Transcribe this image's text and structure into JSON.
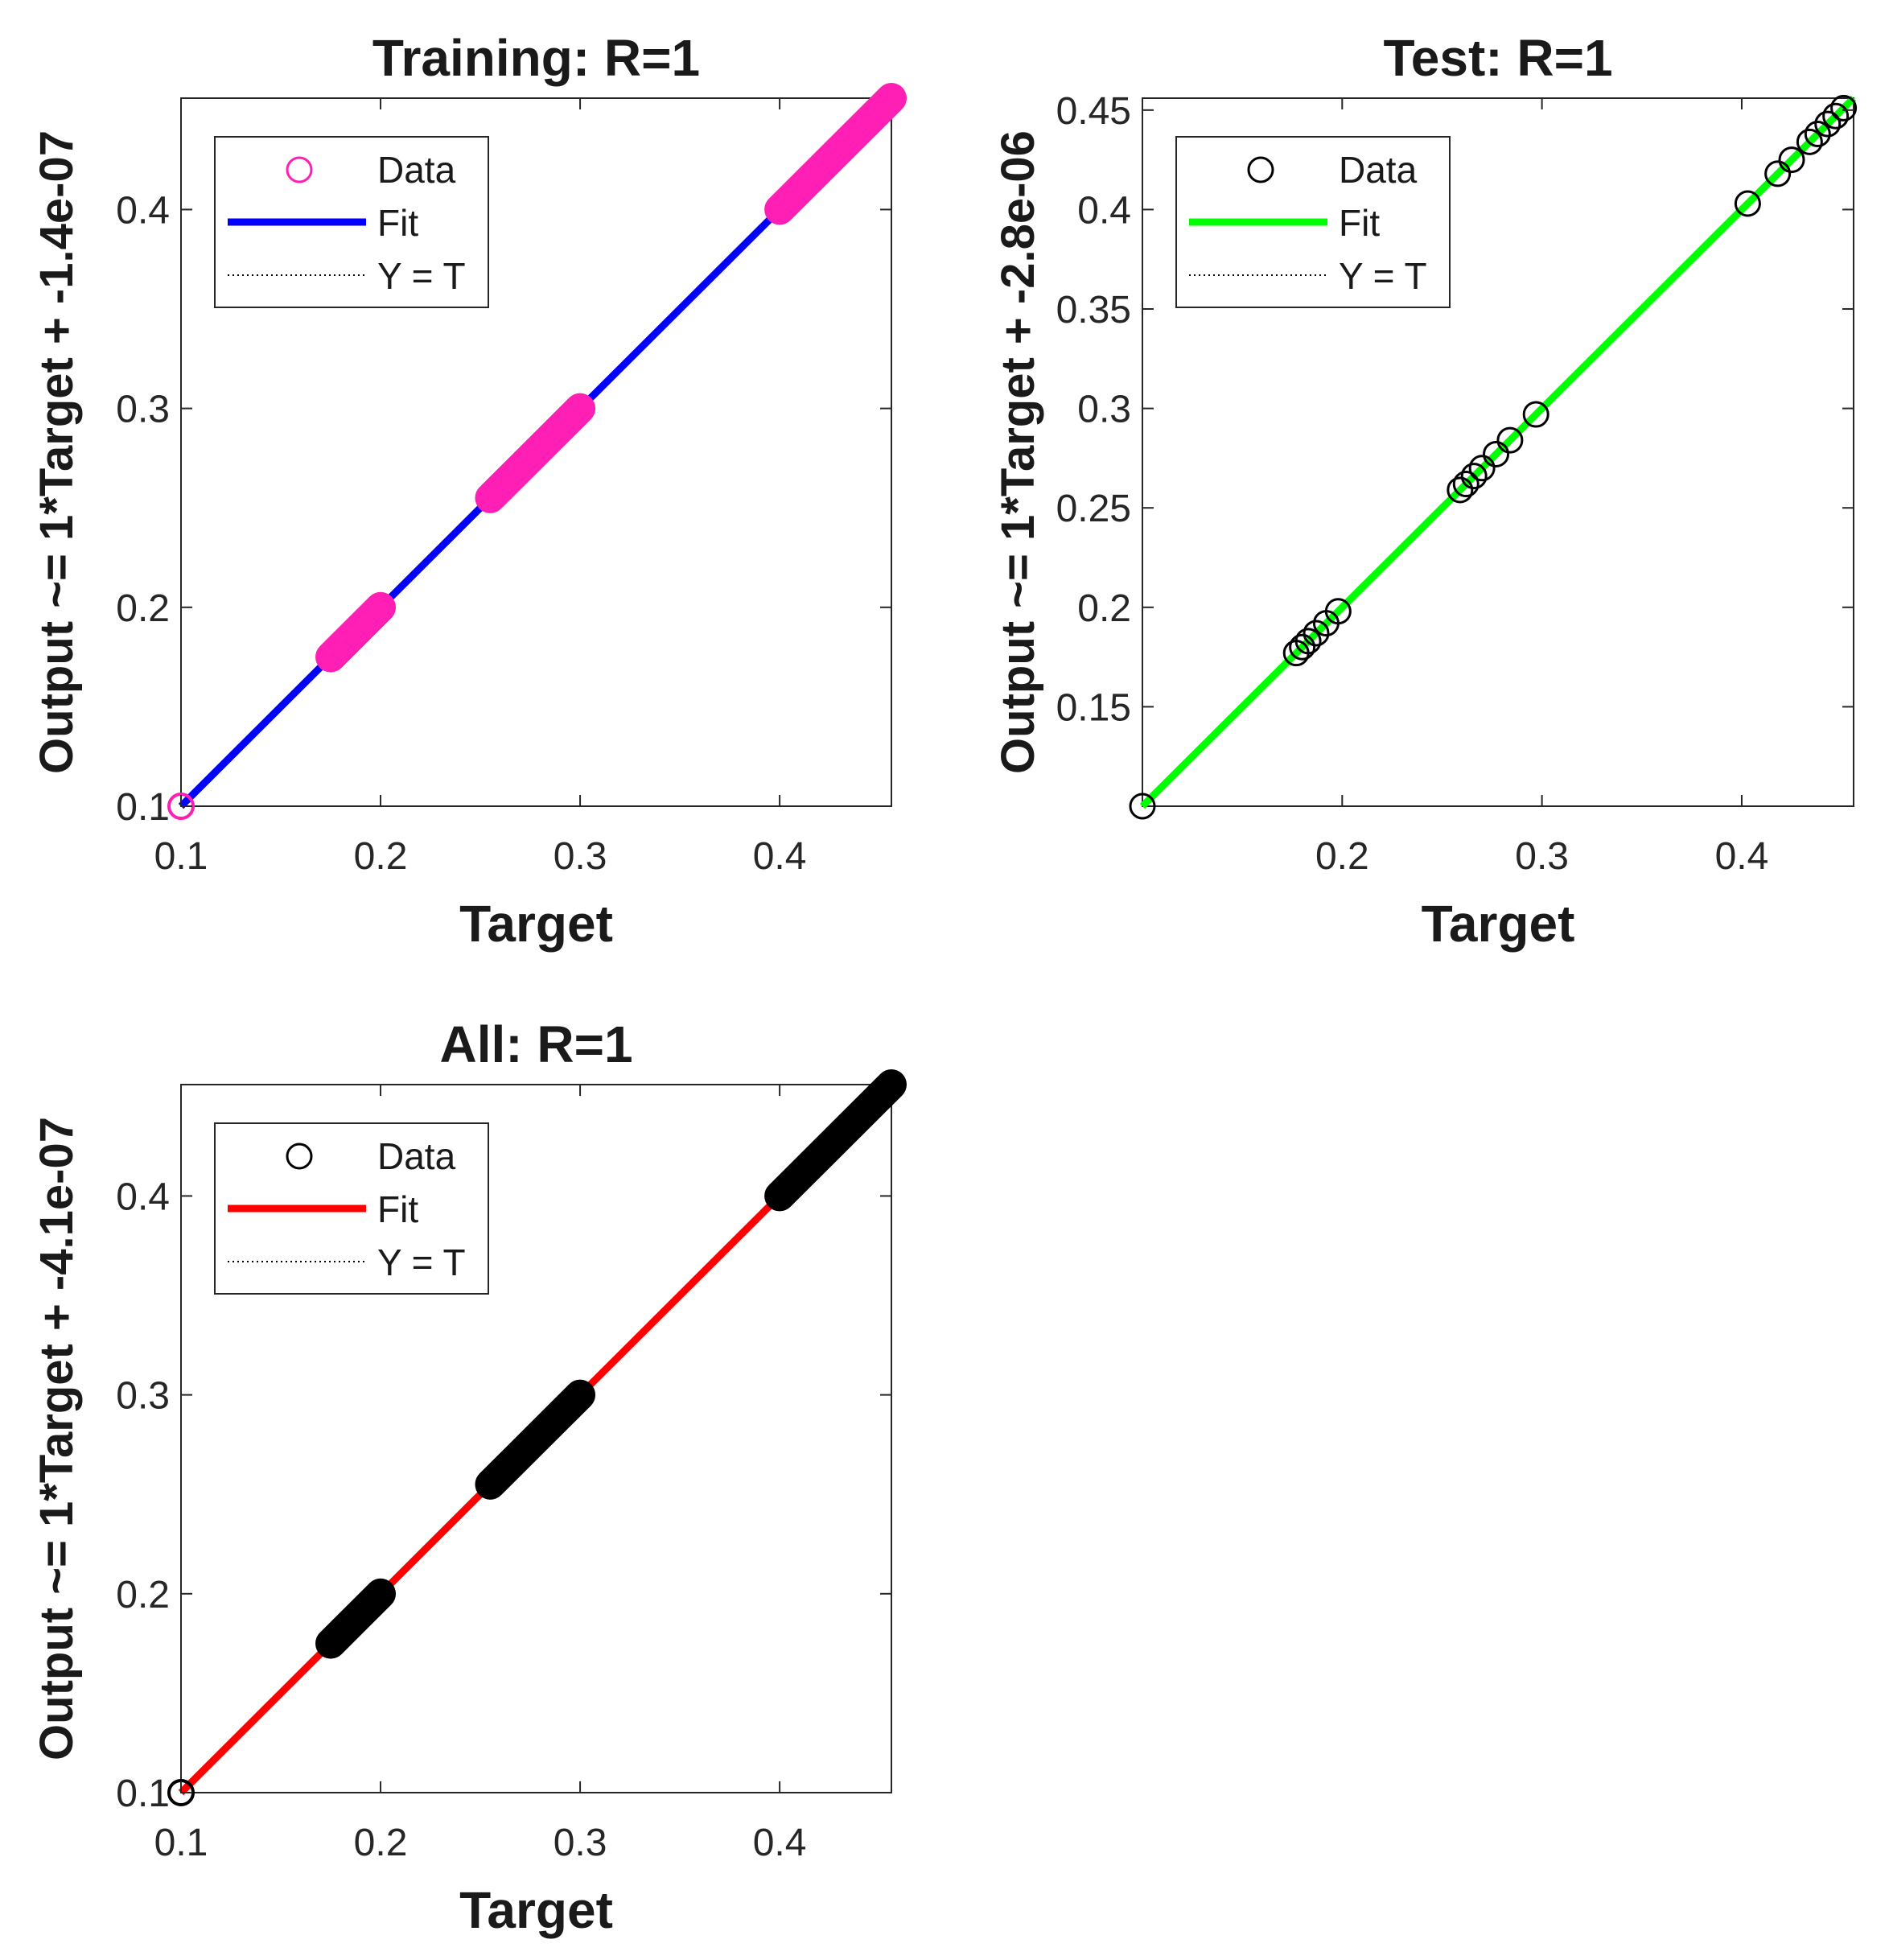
{
  "chart_data": [
    {
      "type": "scatter",
      "title": "Training: R=1",
      "xlabel": "Target",
      "ylabel": "Output ~= 1*Target + -1.4e-07",
      "xlim": [
        0.1,
        0.456
      ],
      "ylim": [
        0.1,
        0.456
      ],
      "xticks": [
        0.1,
        0.2,
        0.3,
        0.4
      ],
      "yticks": [
        0.1,
        0.2,
        0.3,
        0.4
      ],
      "xtick_labels": [
        "0.1",
        "0.2",
        "0.3",
        "0.4"
      ],
      "ytick_labels": [
        "0.1",
        "0.2",
        "0.3",
        "0.4"
      ],
      "grid": false,
      "legend_position": "top-left",
      "legend": [
        "Data",
        "Fit",
        "Y = T"
      ],
      "colors": {
        "data": "#ff1fb4",
        "fit": "#0000ff",
        "ref": "#000000"
      },
      "fit": {
        "slope": 1,
        "intercept": -1.4e-07
      },
      "clusters": [
        [
          0.1,
          0.1
        ],
        [
          0.175,
          0.2
        ],
        [
          0.255,
          0.3
        ],
        [
          0.4,
          0.456
        ]
      ],
      "points": []
    },
    {
      "type": "scatter",
      "title": "Test: R=1",
      "xlabel": "Target",
      "ylabel": "Output ~= 1*Target + -2.8e-06",
      "xlim": [
        0.1,
        0.456
      ],
      "ylim": [
        0.1,
        0.456
      ],
      "xticks": [
        0.2,
        0.3,
        0.4
      ],
      "yticks": [
        0.15,
        0.2,
        0.25,
        0.3,
        0.35,
        0.4,
        0.45
      ],
      "xtick_labels": [
        "0.2",
        "0.3",
        "0.4"
      ],
      "ytick_labels": [
        "0.15",
        "0.2",
        "0.25",
        "0.3",
        "0.35",
        "0.4",
        "0.45"
      ],
      "grid": false,
      "legend_position": "top-left",
      "legend": [
        "Data",
        "Fit",
        "Y = T"
      ],
      "colors": {
        "data": "#000000",
        "fit": "#00ff00",
        "ref": "#000000"
      },
      "fit": {
        "slope": 1,
        "intercept": -2.8e-06
      },
      "clusters": [],
      "points": [
        0.1,
        0.177,
        0.18,
        0.183,
        0.187,
        0.192,
        0.198,
        0.259,
        0.262,
        0.266,
        0.27,
        0.277,
        0.284,
        0.297,
        0.403,
        0.418,
        0.425,
        0.434,
        0.438,
        0.443,
        0.447,
        0.451
      ]
    },
    {
      "type": "scatter",
      "title": "All: R=1",
      "xlabel": "Target",
      "ylabel": "Output ~= 1*Target + -4.1e-07",
      "xlim": [
        0.1,
        0.456
      ],
      "ylim": [
        0.1,
        0.456
      ],
      "xticks": [
        0.1,
        0.2,
        0.3,
        0.4
      ],
      "yticks": [
        0.1,
        0.2,
        0.3,
        0.4
      ],
      "xtick_labels": [
        "0.1",
        "0.2",
        "0.3",
        "0.4"
      ],
      "ytick_labels": [
        "0.1",
        "0.2",
        "0.3",
        "0.4"
      ],
      "grid": false,
      "legend_position": "top-left",
      "legend": [
        "Data",
        "Fit",
        "Y = T"
      ],
      "colors": {
        "data": "#000000",
        "fit": "#ff0000",
        "ref": "#000000"
      },
      "fit": {
        "slope": 1,
        "intercept": -4.1e-07
      },
      "clusters": [
        [
          0.1,
          0.1
        ],
        [
          0.175,
          0.2
        ],
        [
          0.255,
          0.3
        ],
        [
          0.4,
          0.456
        ]
      ],
      "points": []
    }
  ]
}
